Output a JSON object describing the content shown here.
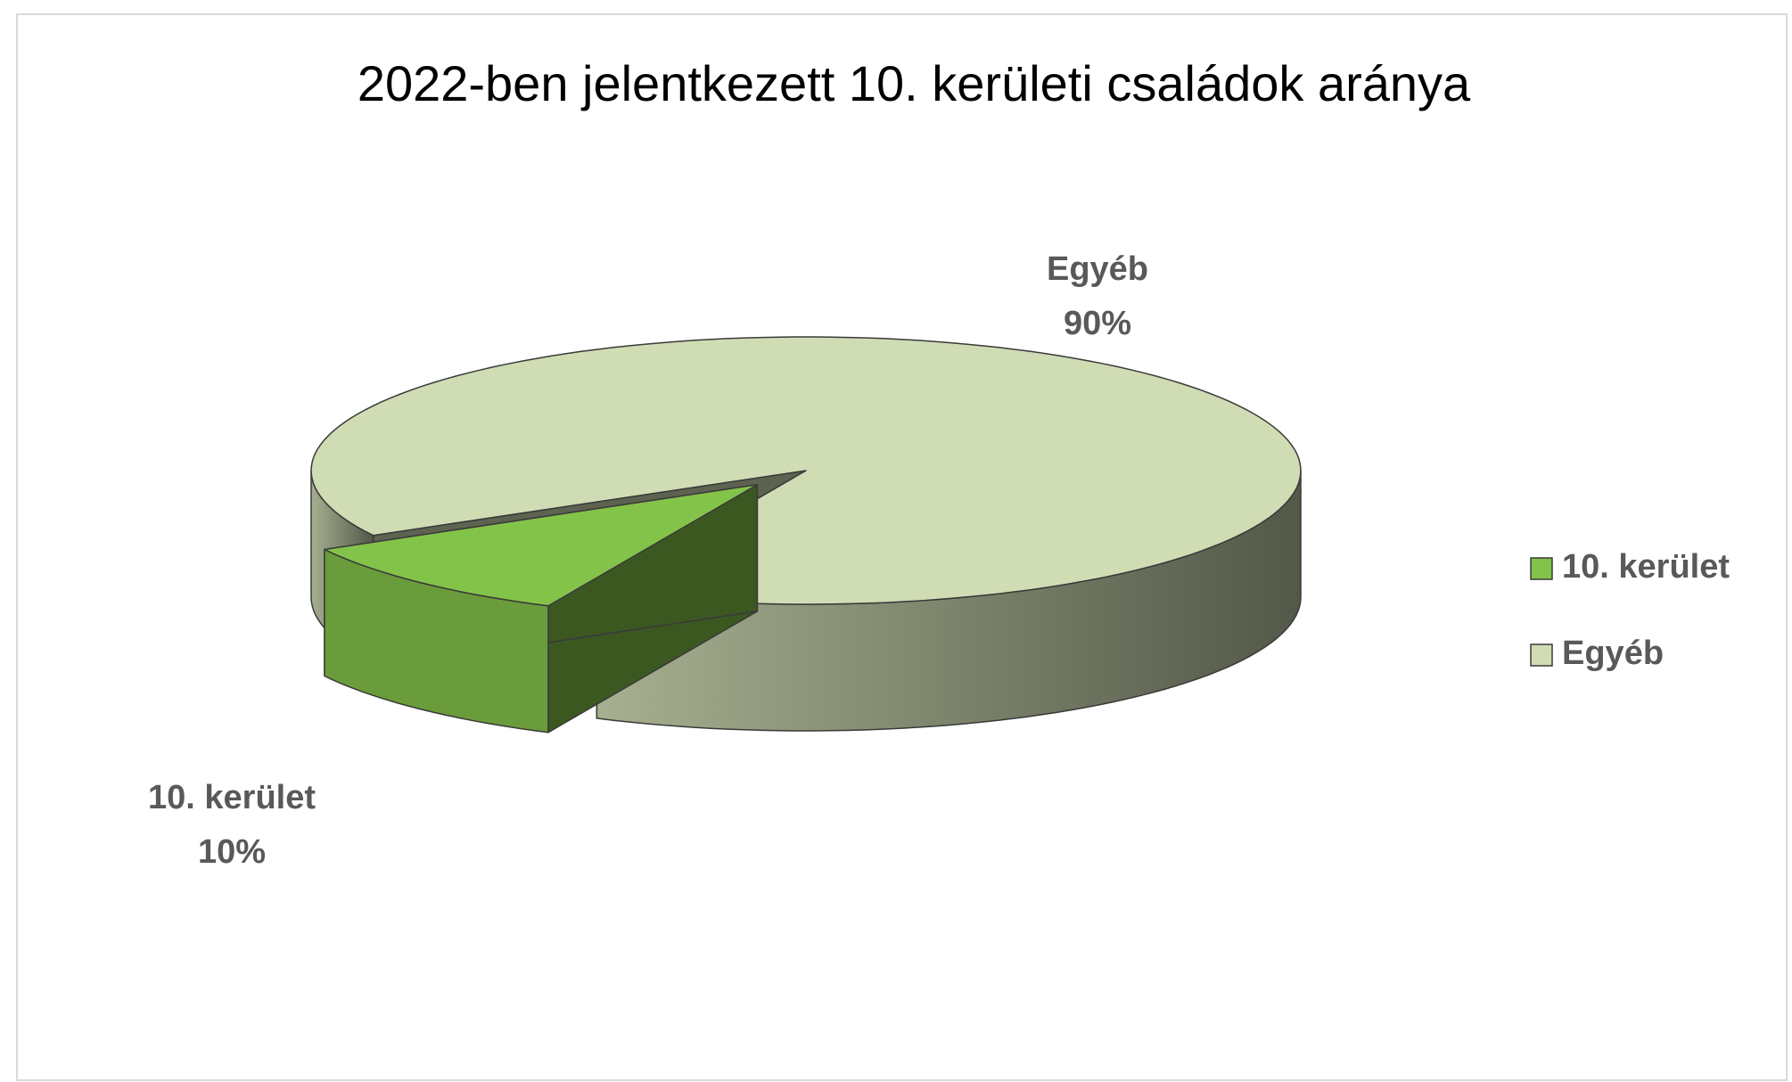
{
  "chart_data": {
    "type": "pie",
    "title": "2022-ben jelentkezett 10. kerületi családok aránya",
    "categories": [
      "10. kerület",
      "Egyéb"
    ],
    "values": [
      10,
      90
    ],
    "value_labels": [
      "10%",
      "90%"
    ],
    "colors": [
      "#84c34a",
      "#d0dcb4"
    ],
    "legend": "right"
  }
}
